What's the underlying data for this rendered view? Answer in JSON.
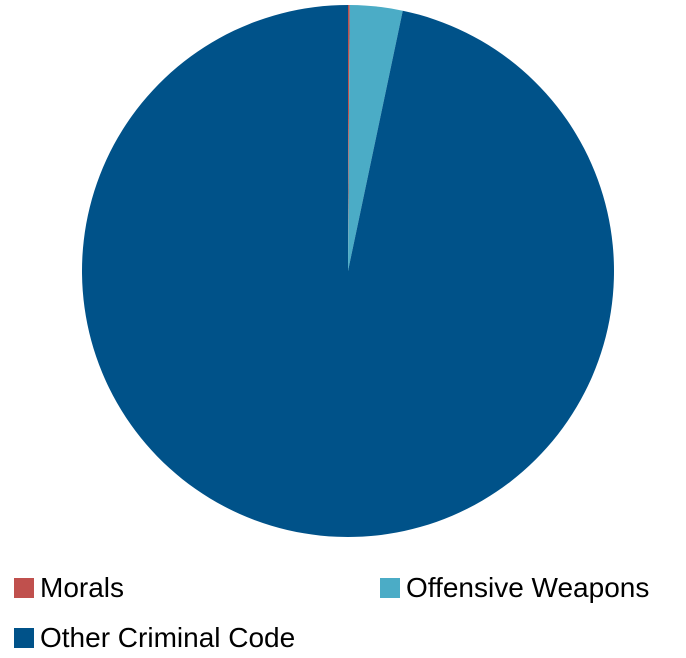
{
  "chart_data": {
    "type": "pie",
    "title": "",
    "categories": [
      "Morals",
      "Offensive Weapons",
      "Other Criminal Code"
    ],
    "values": [
      0.1,
      3.2,
      96.7
    ],
    "colors": [
      "#c0504d",
      "#4bacc6",
      "#005289"
    ],
    "legend_position": "bottom"
  }
}
